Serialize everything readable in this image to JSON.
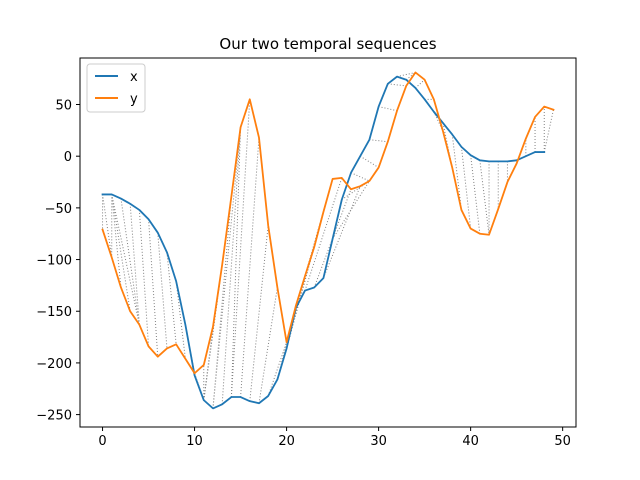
{
  "chart_data": {
    "type": "line",
    "title": "Our two temporal sequences",
    "xlabel": "",
    "ylabel": "",
    "xlim": [
      -2.45,
      51.45
    ],
    "ylim": [
      -262,
      95
    ],
    "x_ticks": [
      0,
      10,
      20,
      30,
      40,
      50
    ],
    "y_ticks": [
      -250,
      -200,
      -150,
      -100,
      -50,
      0,
      50
    ],
    "y_tick_labels": [
      "−250",
      "−200",
      "−150",
      "−100",
      "−50",
      "0",
      "50"
    ],
    "grid": false,
    "legend": "top-left",
    "series": [
      {
        "name": "x",
        "color": "#1f77b4",
        "x": [
          0,
          1,
          2,
          3,
          4,
          5,
          6,
          7,
          8,
          9,
          10,
          11,
          12,
          13,
          14,
          15,
          16,
          17,
          18,
          19,
          20,
          21,
          22,
          23,
          24,
          25,
          26,
          27,
          28,
          29,
          30,
          31,
          32,
          33,
          34,
          35,
          36,
          37,
          38,
          39,
          40,
          41,
          42,
          43,
          44,
          45,
          46,
          47,
          48
        ],
        "values": [
          -37,
          -37,
          -41,
          -46,
          -52,
          -61,
          -74,
          -93,
          -121,
          -163,
          -212,
          -236,
          -244,
          -240,
          -233,
          -233,
          -237,
          -239,
          -232,
          -216,
          -186,
          -147,
          -130,
          -127,
          -118,
          -80,
          -42,
          -16,
          0,
          16,
          48,
          70,
          77,
          74,
          66,
          55,
          43,
          32,
          21,
          9,
          1,
          -4,
          -5,
          -5,
          -5,
          -4,
          0,
          4,
          4
        ]
      },
      {
        "name": "y",
        "color": "#ff7f0e",
        "x": [
          0,
          1,
          2,
          3,
          4,
          5,
          6,
          7,
          8,
          9,
          10,
          11,
          12,
          13,
          14,
          15,
          16,
          17,
          18,
          19,
          20,
          21,
          22,
          23,
          24,
          25,
          26,
          27,
          28,
          29,
          30,
          31,
          32,
          33,
          34,
          35,
          36,
          37,
          38,
          39,
          40,
          41,
          42,
          43,
          44,
          45,
          46,
          47,
          48,
          49
        ],
        "values": [
          -71,
          -98,
          -127,
          -150,
          -163,
          -184,
          -194,
          -186,
          -182,
          -196,
          -210,
          -202,
          -165,
          -105,
          -39,
          28,
          55,
          18,
          -67,
          -127,
          -180,
          -145,
          -116,
          -88,
          -54,
          -22,
          -21,
          -32,
          -29,
          -24,
          -11,
          14,
          44,
          68,
          81,
          74,
          55,
          24,
          -11,
          -52,
          -70,
          -75,
          -76,
          -51,
          -25,
          -7,
          17,
          38,
          48,
          45
        ]
      }
    ],
    "alignment": {
      "color": "#808080",
      "style": "dotted",
      "pairs": [
        [
          0,
          0
        ],
        [
          0,
          1
        ],
        [
          1,
          1
        ],
        [
          1,
          2
        ],
        [
          1,
          3
        ],
        [
          1,
          4
        ],
        [
          2,
          4
        ],
        [
          3,
          4
        ],
        [
          4,
          5
        ],
        [
          5,
          6
        ],
        [
          6,
          7
        ],
        [
          7,
          8
        ],
        [
          8,
          9
        ],
        [
          9,
          10
        ],
        [
          10,
          10
        ],
        [
          11,
          10
        ],
        [
          11,
          11
        ],
        [
          11,
          12
        ],
        [
          11,
          13
        ],
        [
          11,
          14
        ],
        [
          12,
          14
        ],
        [
          12,
          15
        ],
        [
          13,
          15
        ],
        [
          14,
          15
        ],
        [
          14,
          16
        ],
        [
          15,
          17
        ],
        [
          16,
          18
        ],
        [
          17,
          19
        ],
        [
          18,
          20
        ],
        [
          19,
          21
        ],
        [
          20,
          22
        ],
        [
          20,
          23
        ],
        [
          20,
          24
        ],
        [
          21,
          25
        ],
        [
          22,
          26
        ],
        [
          23,
          27
        ],
        [
          24,
          28
        ],
        [
          25,
          29
        ],
        [
          26,
          29
        ],
        [
          27,
          29
        ],
        [
          28,
          30
        ],
        [
          29,
          31
        ],
        [
          30,
          32
        ],
        [
          31,
          33
        ],
        [
          32,
          34
        ],
        [
          33,
          34
        ],
        [
          34,
          35
        ],
        [
          35,
          36
        ],
        [
          36,
          37
        ],
        [
          37,
          38
        ],
        [
          38,
          39
        ],
        [
          39,
          40
        ],
        [
          40,
          41
        ],
        [
          41,
          42
        ],
        [
          42,
          42
        ],
        [
          43,
          43
        ],
        [
          44,
          44
        ],
        [
          45,
          45
        ],
        [
          46,
          46
        ],
        [
          47,
          47
        ],
        [
          48,
          48
        ],
        [
          48,
          49
        ]
      ]
    }
  }
}
